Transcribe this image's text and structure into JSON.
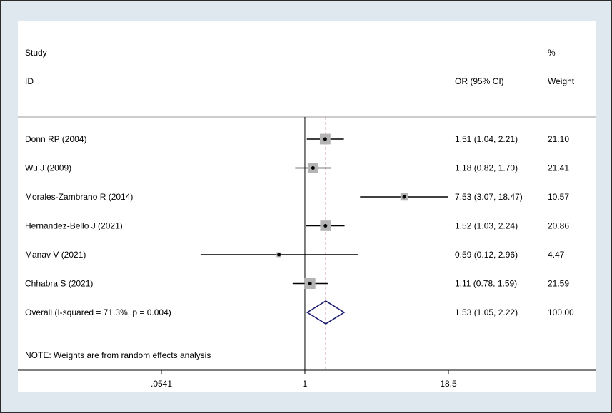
{
  "chart_data": {
    "type": "forest",
    "header": {
      "study_line1": "Study",
      "study_line2": "ID",
      "or_label": "OR (95% CI)",
      "weight_line1": "%",
      "weight_line2": "Weight"
    },
    "studies": [
      {
        "id": "Donn RP (2004)",
        "or": 1.51,
        "lo": 1.04,
        "hi": 2.21,
        "weight": 21.1,
        "ci_text": "1.51 (1.04, 2.21)",
        "weight_text": "21.10"
      },
      {
        "id": "Wu J (2009)",
        "or": 1.18,
        "lo": 0.82,
        "hi": 1.7,
        "weight": 21.41,
        "ci_text": "1.18 (0.82, 1.70)",
        "weight_text": "21.41"
      },
      {
        "id": "Morales-Zambrano R (2014)",
        "or": 7.53,
        "lo": 3.07,
        "hi": 18.47,
        "weight": 10.57,
        "ci_text": "7.53 (3.07, 18.47)",
        "weight_text": "10.57"
      },
      {
        "id": "Hernandez-Bello J (2021)",
        "or": 1.52,
        "lo": 1.03,
        "hi": 2.24,
        "weight": 20.86,
        "ci_text": "1.52 (1.03, 2.24)",
        "weight_text": "20.86"
      },
      {
        "id": "Manav V (2021)",
        "or": 0.59,
        "lo": 0.12,
        "hi": 2.96,
        "weight": 4.47,
        "ci_text": "0.59 (0.12, 2.96)",
        "weight_text": "4.47"
      },
      {
        "id": "Chhabra S (2021)",
        "or": 1.11,
        "lo": 0.78,
        "hi": 1.59,
        "weight": 21.59,
        "ci_text": "1.11 (0.78, 1.59)",
        "weight_text": "21.59"
      }
    ],
    "overall": {
      "label": "Overall  (I-squared = 71.3%, p = 0.004)",
      "or": 1.53,
      "lo": 1.05,
      "hi": 2.22,
      "ci_text": "1.53 (1.05, 2.22)",
      "weight_text": "100.00"
    },
    "note": "NOTE: Weights are from random effects analysis",
    "x_axis": {
      "scale": "log",
      "range": [
        0.0541,
        18.5
      ],
      "ticks": [
        0.0541,
        1,
        18.5
      ],
      "tick_labels": [
        ".0541",
        "1",
        "18.5"
      ]
    },
    "null_line": 1,
    "colors": {
      "marker_box": "#b4b4b4",
      "diamond": "#1a1a6e",
      "pooled_line": "#a0303a",
      "axis": "#000000",
      "background": "#dfe8ee"
    }
  }
}
